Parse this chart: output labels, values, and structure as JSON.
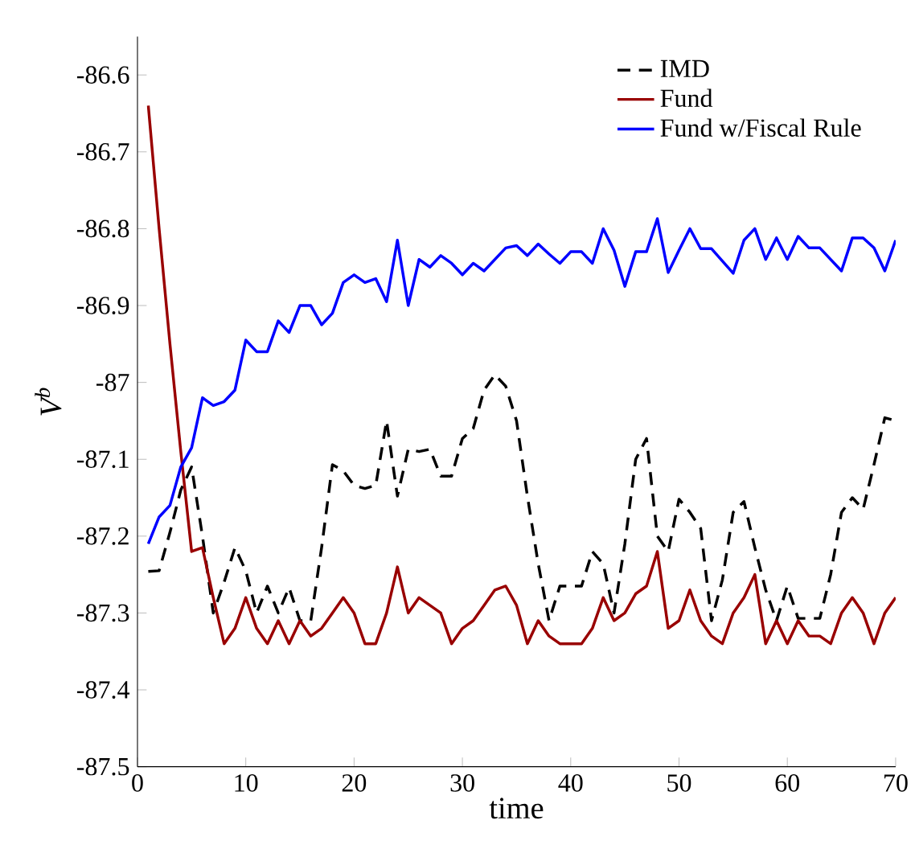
{
  "chart_data": {
    "type": "line",
    "xlabel": "time",
    "ylabel": "V$^{b}$",
    "xlim": [
      0,
      70
    ],
    "ylim": [
      -87.5,
      -86.55
    ],
    "xticks": [
      0,
      10,
      20,
      30,
      40,
      50,
      60,
      70
    ],
    "yticks": [
      {
        "value": -87.5,
        "label": "-87.5"
      },
      {
        "value": -87.4,
        "label": "-87.4"
      },
      {
        "value": -87.3,
        "label": "-87.3"
      },
      {
        "value": -87.2,
        "label": "-87.2"
      },
      {
        "value": -87.1,
        "label": "-87.1"
      },
      {
        "value": -87,
        "label": "-87"
      },
      {
        "value": -86.9,
        "label": "-86.9"
      },
      {
        "value": -86.8,
        "label": "-86.8"
      },
      {
        "value": -86.7,
        "label": "-86.7"
      },
      {
        "value": -86.6,
        "label": "-86.6"
      }
    ],
    "legend": "top right",
    "grid": false,
    "x": [
      1,
      2,
      3,
      4,
      5,
      6,
      7,
      8,
      9,
      10,
      11,
      12,
      13,
      14,
      15,
      16,
      17,
      18,
      19,
      20,
      21,
      22,
      23,
      24,
      25,
      26,
      27,
      28,
      29,
      30,
      31,
      32,
      33,
      34,
      35,
      36,
      37,
      38,
      39,
      40,
      41,
      42,
      43,
      44,
      45,
      46,
      47,
      48,
      49,
      50,
      51,
      52,
      53,
      54,
      55,
      56,
      57,
      58,
      59,
      60,
      61,
      62,
      63,
      64,
      65,
      66,
      67,
      68,
      69,
      70
    ],
    "series": [
      {
        "name": "IMD",
        "color": "#000000",
        "line_style": "dashed",
        "values": [
          -87.246,
          -87.245,
          -87.195,
          -87.14,
          -87.11,
          -87.2,
          -87.3,
          -87.26,
          -87.215,
          -87.245,
          -87.3,
          -87.265,
          -87.3,
          -87.267,
          -87.31,
          -87.31,
          -87.215,
          -87.107,
          -87.115,
          -87.134,
          -87.138,
          -87.134,
          -87.05,
          -87.148,
          -87.087,
          -87.09,
          -87.087,
          -87.122,
          -87.122,
          -87.073,
          -87.06,
          -87.01,
          -86.99,
          -87.005,
          -87.05,
          -87.148,
          -87.236,
          -87.31,
          -87.265,
          -87.265,
          -87.265,
          -87.22,
          -87.236,
          -87.3,
          -87.21,
          -87.1,
          -87.073,
          -87.2,
          -87.22,
          -87.152,
          -87.169,
          -87.19,
          -87.31,
          -87.257,
          -87.169,
          -87.155,
          -87.215,
          -87.27,
          -87.31,
          -87.265,
          -87.307,
          -87.307,
          -87.307,
          -87.25,
          -87.169,
          -87.15,
          -87.165,
          -87.107,
          -87.046,
          -87.05
        ]
      },
      {
        "name": "Fund",
        "color": "#990000",
        "line_style": "solid",
        "values": [
          -86.64,
          -86.8,
          -86.95,
          -87.09,
          -87.22,
          -87.215,
          -87.28,
          -87.34,
          -87.32,
          -87.28,
          -87.32,
          -87.34,
          -87.31,
          -87.34,
          -87.31,
          -87.33,
          -87.32,
          -87.3,
          -87.28,
          -87.3,
          -87.34,
          -87.34,
          -87.3,
          -87.24,
          -87.3,
          -87.28,
          -87.29,
          -87.3,
          -87.34,
          -87.32,
          -87.31,
          -87.29,
          -87.27,
          -87.265,
          -87.29,
          -87.34,
          -87.31,
          -87.33,
          -87.34,
          -87.34,
          -87.34,
          -87.32,
          -87.28,
          -87.31,
          -87.3,
          -87.275,
          -87.265,
          -87.22,
          -87.32,
          -87.31,
          -87.27,
          -87.31,
          -87.33,
          -87.34,
          -87.3,
          -87.28,
          -87.25,
          -87.34,
          -87.31,
          -87.34,
          -87.31,
          -87.33,
          -87.33,
          -87.34,
          -87.3,
          -87.28,
          -87.3,
          -87.34,
          -87.3,
          -87.28
        ]
      },
      {
        "name": "Fund w/Fiscal Rule",
        "color": "#0000ff",
        "line_style": "solid",
        "values": [
          -87.21,
          -87.175,
          -87.16,
          -87.11,
          -87.085,
          -87.02,
          -87.03,
          -87.025,
          -87.01,
          -86.945,
          -86.96,
          -86.96,
          -86.92,
          -86.935,
          -86.9,
          -86.9,
          -86.925,
          -86.91,
          -86.87,
          -86.86,
          -86.87,
          -86.865,
          -86.895,
          -86.815,
          -86.9,
          -86.84,
          -86.85,
          -86.835,
          -86.845,
          -86.86,
          -86.845,
          -86.855,
          -86.84,
          -86.825,
          -86.822,
          -86.835,
          -86.82,
          -86.833,
          -86.845,
          -86.83,
          -86.83,
          -86.845,
          -86.8,
          -86.828,
          -86.875,
          -86.83,
          -86.83,
          -86.787,
          -86.857,
          -86.828,
          -86.8,
          -86.826,
          -86.826,
          -86.842,
          -86.858,
          -86.815,
          -86.8,
          -86.84,
          -86.812,
          -86.84,
          -86.81,
          -86.825,
          -86.825,
          -86.84,
          -86.855,
          -86.812,
          -86.812,
          -86.825,
          -86.855,
          -86.815
        ]
      }
    ]
  }
}
